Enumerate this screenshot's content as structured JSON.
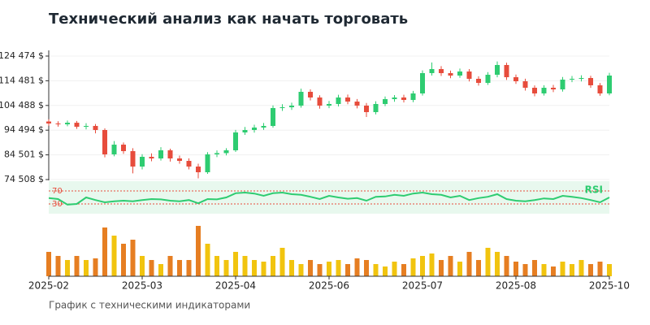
{
  "chart_data": [
    {
      "type": "candlestick",
      "title": "Технический анализ как начать торговать",
      "caption": "График с техническими индикаторами",
      "categories": [
        "2025-02",
        null,
        null,
        null,
        null,
        null,
        null,
        null,
        null,
        null,
        "2025-03",
        null,
        null,
        null,
        null,
        null,
        null,
        null,
        null,
        null,
        "2025-04",
        null,
        null,
        null,
        null,
        null,
        null,
        null,
        null,
        null,
        "2025-06",
        null,
        null,
        null,
        null,
        null,
        null,
        null,
        null,
        null,
        "2025-07",
        null,
        null,
        null,
        null,
        null,
        null,
        null,
        null,
        null,
        "2025-08",
        null,
        null,
        null,
        null,
        null,
        null,
        null,
        null,
        null,
        "2025-10"
      ],
      "open": [
        98000,
        97190,
        96860,
        97500,
        95870,
        96200,
        94560,
        84700,
        88640,
        86010,
        79770,
        83710,
        83050,
        86340,
        83050,
        82070,
        79770,
        77470,
        84700,
        85200,
        86340,
        93570,
        94560,
        95550,
        96200,
        103430,
        103760,
        104420,
        110010,
        107710,
        104420,
        105080,
        107710,
        106060,
        104420,
        101790,
        105080,
        107050,
        107710,
        106720,
        109350,
        117570,
        119210,
        117570,
        116580,
        118230,
        115270,
        113620,
        116910,
        120860,
        115920,
        114280,
        111650,
        109350,
        111650,
        110990,
        114940,
        115270,
        115600,
        112640,
        109350
      ],
      "high": [
        98900,
        98100,
        98400,
        98200,
        97300,
        97000,
        95200,
        90100,
        89500,
        87200,
        84800,
        85100,
        87600,
        87000,
        84200,
        83100,
        80900,
        85600,
        86300,
        87200,
        94600,
        95800,
        96700,
        97400,
        104500,
        105000,
        105600,
        111300,
        111000,
        108600,
        106300,
        108800,
        108900,
        107100,
        105500,
        106200,
        108100,
        108700,
        108800,
        110400,
        118700,
        121900,
        120400,
        118600,
        119400,
        119200,
        116300,
        118000,
        122300,
        121800,
        117000,
        115300,
        112600,
        112700,
        112800,
        116000,
        116400,
        116700,
        116500,
        113600,
        117700
      ],
      "low": [
        96300,
        95900,
        96100,
        95000,
        94800,
        93200,
        83500,
        83900,
        84900,
        77000,
        78600,
        81900,
        82200,
        81800,
        80900,
        78600,
        75000,
        76800,
        83600,
        84300,
        85700,
        92600,
        93500,
        94600,
        95500,
        102300,
        102700,
        103600,
        106500,
        103200,
        103400,
        104100,
        105000,
        103300,
        99800,
        100900,
        104200,
        106000,
        105700,
        105800,
        108500,
        116600,
        116400,
        115500,
        115700,
        114200,
        112500,
        112800,
        115900,
        114800,
        113200,
        110500,
        108200,
        108500,
        109900,
        110100,
        113900,
        114200,
        111600,
        108400,
        108600
      ],
      "close": [
        97190,
        96860,
        97500,
        95870,
        96200,
        94560,
        84700,
        88640,
        86010,
        79770,
        83710,
        83050,
        86340,
        83050,
        82070,
        79770,
        77470,
        84700,
        85200,
        86340,
        93570,
        94560,
        95550,
        96200,
        103430,
        103760,
        104420,
        110010,
        107710,
        104420,
        105080,
        107710,
        106060,
        104420,
        101790,
        105080,
        107050,
        107710,
        106720,
        109350,
        117570,
        119210,
        117570,
        116580,
        118230,
        115270,
        113620,
        116910,
        120860,
        115920,
        114280,
        111650,
        109350,
        111650,
        110990,
        114940,
        115270,
        115600,
        112640,
        109350,
        116580
      ],
      "up_color": "#2ecc71",
      "down_color": "#e74c3c",
      "ylim": [
        74179,
        126775
      ],
      "yticks": [
        {
          "value": 74508,
          "label": "74 508 $"
        },
        {
          "value": 84501,
          "label": "84 501 $"
        },
        {
          "value": 94494,
          "label": "94 494 $"
        },
        {
          "value": 104488,
          "label": "104 488 $"
        },
        {
          "value": 114481,
          "label": "114 481 $"
        },
        {
          "value": 124474,
          "label": "124 474 $"
        }
      ],
      "grid": true
    },
    {
      "type": "line",
      "name": "RSI",
      "color": "#2ecc71",
      "band_color": "#e8f8ee",
      "level_color": "#e74c3c",
      "values": [
        48,
        45,
        28,
        30,
        50,
        42,
        35,
        38,
        40,
        38,
        42,
        45,
        44,
        40,
        38,
        42,
        32,
        45,
        44,
        50,
        63,
        65,
        62,
        55,
        63,
        65,
        60,
        58,
        52,
        45,
        55,
        50,
        46,
        48,
        40,
        52,
        53,
        58,
        55,
        62,
        65,
        60,
        58,
        50,
        55,
        42,
        48,
        52,
        60,
        45,
        40,
        38,
        42,
        47,
        45,
        55,
        52,
        48,
        42,
        35,
        50
      ],
      "ylim": [
        0,
        100
      ],
      "yticks": [
        30,
        70
      ]
    },
    {
      "type": "bar",
      "up_color": "#f1c40f",
      "down_color": "#e67e22",
      "values": [
        30,
        25,
        20,
        25,
        20,
        22,
        60,
        50,
        40,
        45,
        25,
        20,
        15,
        25,
        20,
        20,
        62,
        40,
        25,
        20,
        30,
        25,
        20,
        18,
        25,
        35,
        20,
        15,
        20,
        15,
        18,
        20,
        15,
        22,
        20,
        15,
        12,
        18,
        15,
        22,
        25,
        28,
        20,
        25,
        18,
        30,
        20,
        35,
        30,
        25,
        18,
        15,
        20,
        15,
        12,
        18,
        15,
        20,
        15,
        18,
        15
      ],
      "ylim": [
        0,
        70
      ]
    }
  ]
}
